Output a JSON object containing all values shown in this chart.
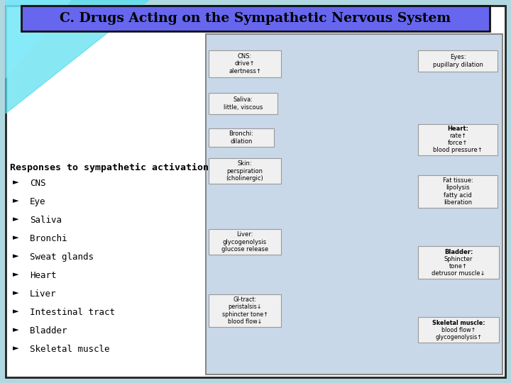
{
  "title": "C. Drugs Acting on the Sympathetic Nervous System",
  "title_bg_color": "#6666EE",
  "title_text_color": "#000000",
  "title_border_color": "#111111",
  "slide_bg_color": "#FFFFFF",
  "slide_border_color": "#222222",
  "teal_color": "#55DDEE",
  "list_header": "Responses to sympathetic activation",
  "list_items": [
    "CNS",
    "Eye",
    "Saliva",
    "Bronchi",
    "Sweat glands",
    "Heart",
    "Liver",
    "Intestinal tract",
    "Bladder",
    "Skeletal muscle"
  ],
  "list_header_fontsize": 9.5,
  "list_item_fontsize": 9,
  "image_bg_color": "#C8D8E8",
  "image_border_color": "#888888",
  "label_bg": "#F0F0F0",
  "label_border": "#999999"
}
